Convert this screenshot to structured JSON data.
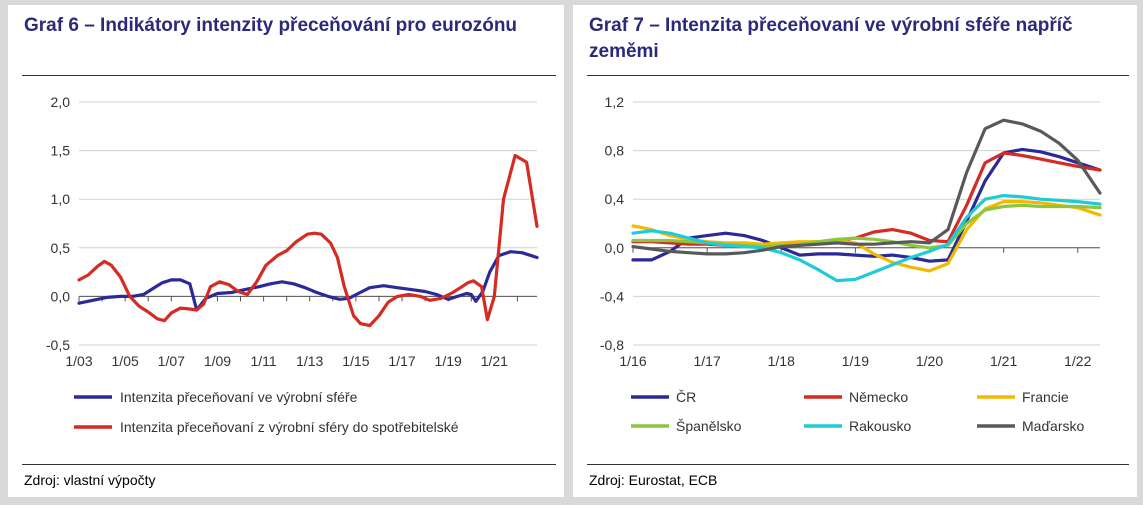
{
  "left": {
    "title": "Graf 6 – Indikátory intenzity přeceňování pro eurozónu",
    "source": "Zdroj: vlastní výpočty"
  },
  "right": {
    "title": "Graf 7 – Intenzita přeceňovaní ve výrobní sféře napříč zeměmi",
    "source": "Zdroj: Eurostat, ECB"
  },
  "chart_data": [
    {
      "type": "line",
      "x_tick_labels": [
        "1/03",
        "1/05",
        "1/07",
        "1/09",
        "1/11",
        "1/13",
        "1/15",
        "1/17",
        "1/19",
        "1/21"
      ],
      "x_range": [
        2003,
        2022.85
      ],
      "ylim": [
        -0.5,
        2.0
      ],
      "y_ticks": [
        2.0,
        1.5,
        1.0,
        0.5,
        0.0,
        -0.5
      ],
      "y_tick_labels": [
        "2,0",
        "1,5",
        "1,0",
        "0,5",
        "0,0",
        "-0,5"
      ],
      "grid": true,
      "legend": "bottom",
      "series": [
        {
          "name": "Intenzita přeceňovaní ve výrobní sféře",
          "color": "#2b2a96",
          "x": [
            2003.0,
            2003.6,
            2004.2,
            2004.8,
            2005.3,
            2005.8,
            2006.2,
            2006.6,
            2007.0,
            2007.4,
            2007.8,
            2008.1,
            2008.5,
            2009.0,
            2009.6,
            2010.2,
            2010.8,
            2011.3,
            2011.8,
            2012.3,
            2012.8,
            2013.3,
            2013.8,
            2014.3,
            2014.7,
            2015.1,
            2015.6,
            2016.2,
            2016.8,
            2017.4,
            2018.0,
            2018.5,
            2019.0,
            2019.4,
            2019.8,
            2020.0,
            2020.2,
            2020.5,
            2020.8,
            2021.2,
            2021.7,
            2022.2,
            2022.85
          ],
          "y": [
            -0.07,
            -0.04,
            -0.01,
            0.0,
            0.0,
            0.02,
            0.08,
            0.14,
            0.17,
            0.17,
            0.13,
            -0.14,
            -0.02,
            0.03,
            0.04,
            0.07,
            0.1,
            0.13,
            0.15,
            0.13,
            0.09,
            0.04,
            0.0,
            -0.03,
            -0.02,
            0.03,
            0.09,
            0.11,
            0.09,
            0.07,
            0.05,
            0.02,
            -0.03,
            0.0,
            0.03,
            0.02,
            -0.05,
            0.05,
            0.25,
            0.42,
            0.46,
            0.45,
            0.4
          ]
        },
        {
          "name": "Intenzita přeceňovaní z výrobní sféry do spotřebitelské",
          "color": "#d42b23",
          "x": [
            2003.0,
            2003.4,
            2003.8,
            2004.1,
            2004.4,
            2004.8,
            2005.2,
            2005.6,
            2006.0,
            2006.4,
            2006.7,
            2007.0,
            2007.4,
            2007.8,
            2008.1,
            2008.4,
            2008.7,
            2009.1,
            2009.5,
            2009.9,
            2010.3,
            2010.7,
            2011.1,
            2011.6,
            2012.0,
            2012.4,
            2012.9,
            2013.2,
            2013.5,
            2013.9,
            2014.2,
            2014.5,
            2014.9,
            2015.2,
            2015.6,
            2016.0,
            2016.4,
            2016.8,
            2017.3,
            2017.8,
            2018.2,
            2018.7,
            2019.2,
            2019.6,
            2019.85,
            2020.1,
            2020.45,
            2020.7,
            2021.0,
            2021.4,
            2021.9,
            2022.4,
            2022.85
          ],
          "y": [
            0.17,
            0.22,
            0.31,
            0.36,
            0.32,
            0.2,
            0.0,
            -0.1,
            -0.16,
            -0.23,
            -0.25,
            -0.17,
            -0.12,
            -0.13,
            -0.14,
            -0.08,
            0.1,
            0.15,
            0.12,
            0.05,
            0.02,
            0.15,
            0.32,
            0.42,
            0.47,
            0.56,
            0.64,
            0.65,
            0.64,
            0.55,
            0.4,
            0.1,
            -0.2,
            -0.28,
            -0.3,
            -0.2,
            -0.06,
            0.0,
            0.02,
            0.0,
            -0.04,
            -0.02,
            0.04,
            0.1,
            0.14,
            0.16,
            0.1,
            -0.24,
            0.0,
            1.0,
            1.45,
            1.38,
            0.72
          ]
        }
      ]
    },
    {
      "type": "line",
      "x_tick_labels": [
        "1/16",
        "1/17",
        "1/18",
        "1/19",
        "1/20",
        "1/21",
        "1/22"
      ],
      "x_range": [
        2016,
        2022.3
      ],
      "ylim": [
        -0.8,
        1.2
      ],
      "y_ticks": [
        1.2,
        0.8,
        0.4,
        0.0,
        -0.4,
        -0.8
      ],
      "y_tick_labels": [
        "1,2",
        "0,8",
        "0,4",
        "0,0",
        "-0,4",
        "-0,8"
      ],
      "grid": true,
      "legend": "bottom",
      "series": [
        {
          "name": "ČR",
          "color": "#2b2a96",
          "x": [
            2016.0,
            2016.25,
            2016.5,
            2016.75,
            2017.0,
            2017.25,
            2017.5,
            2017.75,
            2018.0,
            2018.25,
            2018.5,
            2018.75,
            2019.0,
            2019.25,
            2019.5,
            2019.75,
            2020.0,
            2020.25,
            2020.5,
            2020.75,
            2021.0,
            2021.25,
            2021.5,
            2021.75,
            2022.0,
            2022.3
          ],
          "y": [
            -0.1,
            -0.1,
            -0.03,
            0.08,
            0.1,
            0.12,
            0.1,
            0.06,
            0.0,
            -0.06,
            -0.05,
            -0.05,
            -0.06,
            -0.07,
            -0.06,
            -0.08,
            -0.11,
            -0.1,
            0.22,
            0.55,
            0.78,
            0.81,
            0.79,
            0.75,
            0.7,
            0.64
          ]
        },
        {
          "name": "Německo",
          "color": "#d42b23",
          "x": [
            2016.0,
            2016.25,
            2016.5,
            2016.75,
            2017.0,
            2017.25,
            2017.5,
            2017.75,
            2018.0,
            2018.25,
            2018.5,
            2018.75,
            2019.0,
            2019.25,
            2019.5,
            2019.75,
            2020.0,
            2020.25,
            2020.5,
            2020.75,
            2021.0,
            2021.25,
            2021.5,
            2021.75,
            2022.0,
            2022.3
          ],
          "y": [
            0.05,
            0.05,
            0.04,
            0.03,
            0.03,
            0.02,
            0.02,
            0.02,
            0.03,
            0.04,
            0.05,
            0.06,
            0.08,
            0.13,
            0.15,
            0.12,
            0.06,
            0.05,
            0.35,
            0.7,
            0.78,
            0.76,
            0.73,
            0.7,
            0.67,
            0.64
          ]
        },
        {
          "name": "Francie",
          "color": "#f5b800",
          "x": [
            2016.0,
            2016.25,
            2016.5,
            2016.75,
            2017.0,
            2017.25,
            2017.5,
            2017.75,
            2018.0,
            2018.25,
            2018.5,
            2018.75,
            2019.0,
            2019.25,
            2019.5,
            2019.75,
            2020.0,
            2020.25,
            2020.5,
            2020.75,
            2021.0,
            2021.25,
            2021.5,
            2021.75,
            2022.0,
            2022.3
          ],
          "y": [
            0.18,
            0.15,
            0.1,
            0.07,
            0.05,
            0.04,
            0.04,
            0.03,
            0.04,
            0.05,
            0.05,
            0.06,
            0.04,
            -0.05,
            -0.12,
            -0.16,
            -0.19,
            -0.13,
            0.15,
            0.32,
            0.38,
            0.38,
            0.37,
            0.35,
            0.33,
            0.27
          ]
        },
        {
          "name": "Španělsko",
          "color": "#8cc63f",
          "x": [
            2016.0,
            2016.25,
            2016.5,
            2016.75,
            2017.0,
            2017.25,
            2017.5,
            2017.75,
            2018.0,
            2018.25,
            2018.5,
            2018.75,
            2019.0,
            2019.25,
            2019.5,
            2019.75,
            2020.0,
            2020.25,
            2020.5,
            2020.75,
            2021.0,
            2021.25,
            2021.5,
            2021.75,
            2022.0,
            2022.3
          ],
          "y": [
            0.06,
            0.06,
            0.06,
            0.05,
            0.04,
            0.03,
            0.02,
            0.01,
            0.02,
            0.03,
            0.05,
            0.07,
            0.08,
            0.07,
            0.05,
            0.02,
            0.0,
            0.02,
            0.2,
            0.31,
            0.34,
            0.35,
            0.34,
            0.34,
            0.34,
            0.33
          ]
        },
        {
          "name": "Rakousko",
          "color": "#1ecbd6",
          "x": [
            2016.0,
            2016.25,
            2016.5,
            2016.75,
            2017.0,
            2017.25,
            2017.5,
            2017.75,
            2018.0,
            2018.25,
            2018.5,
            2018.75,
            2019.0,
            2019.25,
            2019.5,
            2019.75,
            2020.0,
            2020.25,
            2020.5,
            2020.75,
            2021.0,
            2021.25,
            2021.5,
            2021.75,
            2022.0,
            2022.3
          ],
          "y": [
            0.12,
            0.14,
            0.12,
            0.08,
            0.04,
            0.02,
            0.01,
            0.0,
            -0.04,
            -0.1,
            -0.18,
            -0.27,
            -0.26,
            -0.2,
            -0.14,
            -0.08,
            -0.03,
            0.03,
            0.25,
            0.4,
            0.43,
            0.42,
            0.4,
            0.39,
            0.38,
            0.36
          ]
        },
        {
          "name": "Maďarsko",
          "color": "#595959",
          "x": [
            2016.0,
            2016.25,
            2016.5,
            2016.75,
            2017.0,
            2017.25,
            2017.5,
            2017.75,
            2018.0,
            2018.25,
            2018.5,
            2018.75,
            2019.0,
            2019.25,
            2019.5,
            2019.75,
            2020.0,
            2020.25,
            2020.5,
            2020.75,
            2021.0,
            2021.25,
            2021.5,
            2021.75,
            2022.0,
            2022.3
          ],
          "y": [
            0.01,
            -0.01,
            -0.03,
            -0.04,
            -0.05,
            -0.05,
            -0.04,
            -0.02,
            0.01,
            0.02,
            0.03,
            0.04,
            0.03,
            0.03,
            0.04,
            0.05,
            0.04,
            0.15,
            0.62,
            0.98,
            1.05,
            1.02,
            0.96,
            0.86,
            0.72,
            0.45
          ]
        }
      ]
    }
  ]
}
